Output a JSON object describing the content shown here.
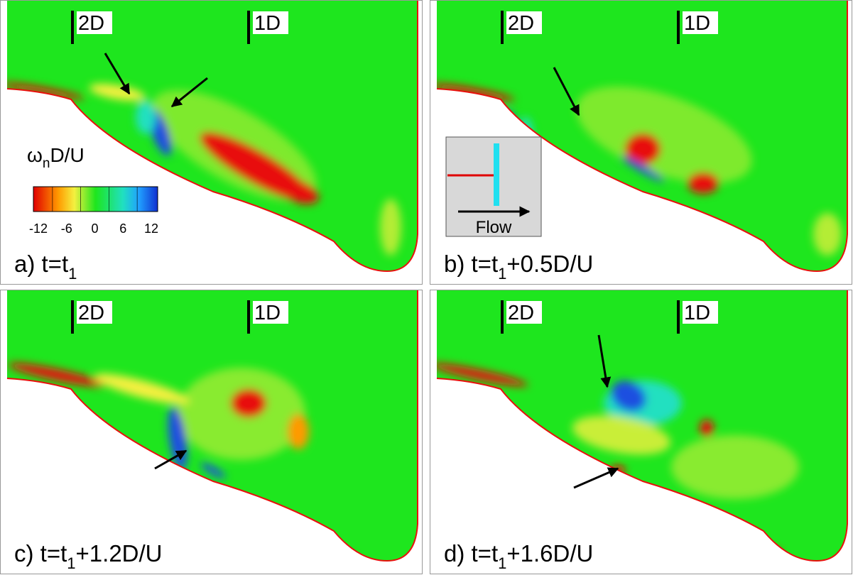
{
  "panels": [
    {
      "label_left": "2D",
      "label_right": "1D",
      "caption": {
        "main": "a) t=t",
        "sub": "1"
      }
    },
    {
      "label_left": "2D",
      "label_right": "1D",
      "caption": {
        "main": "b) t=t",
        "sub": "1",
        "rest": "+0.5D/U"
      }
    },
    {
      "label_left": "2D",
      "label_right": "1D",
      "caption": {
        "main": "c) t=t",
        "sub": "1",
        "rest": "+1.2D/U"
      }
    },
    {
      "label_left": "2D",
      "label_right": "1D",
      "caption": {
        "main": "d) t=t",
        "sub": "1",
        "rest": "+1.6D/U"
      }
    }
  ],
  "colorbar": {
    "label": {
      "main": "ω",
      "sub": "n",
      "rest": "D/U"
    },
    "ticks": [
      -12,
      -6,
      0,
      6,
      12
    ]
  },
  "inset": {
    "text": "Flow"
  }
}
